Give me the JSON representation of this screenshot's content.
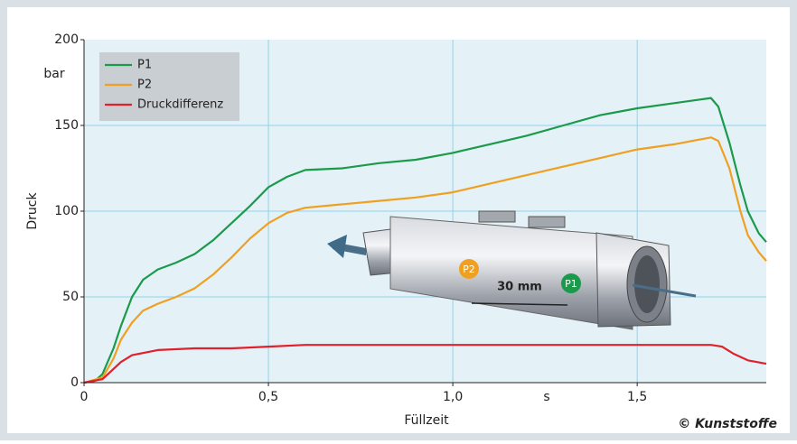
{
  "chart_data": {
    "type": "line",
    "y_label": "Druck",
    "x_label": "Füllzeit",
    "y_unit": "bar",
    "x_unit": "s",
    "credit": "© Kunststoffe",
    "xlim": [
      0,
      1.85
    ],
    "ylim": [
      0,
      200
    ],
    "xticks": [
      0,
      {
        "value": 0.5,
        "label": "0,5"
      },
      {
        "value": 1,
        "label": "1,0"
      },
      {
        "value": 1.5,
        "label": "1,5"
      }
    ],
    "yticks": [
      0,
      50,
      100,
      150,
      200
    ],
    "grid": true,
    "legend": "top-left",
    "series": [
      {
        "name": "P1",
        "color": "#1a9a4a",
        "x": [
          0,
          0.03,
          0.05,
          0.08,
          0.1,
          0.13,
          0.16,
          0.2,
          0.25,
          0.3,
          0.35,
          0.4,
          0.45,
          0.5,
          0.55,
          0.6,
          0.7,
          0.8,
          0.9,
          1.0,
          1.1,
          1.2,
          1.3,
          1.4,
          1.5,
          1.6,
          1.7,
          1.72,
          1.75,
          1.78,
          1.8,
          1.83,
          1.85
        ],
        "values": [
          0,
          1,
          5,
          20,
          33,
          50,
          60,
          66,
          70,
          75,
          83,
          93,
          103,
          114,
          120,
          124,
          125,
          128,
          130,
          134,
          139,
          144,
          150,
          156,
          160,
          163,
          166,
          161,
          140,
          115,
          100,
          87,
          82
        ]
      },
      {
        "name": "P2",
        "color": "#f0a020",
        "x": [
          0,
          0.05,
          0.08,
          0.1,
          0.13,
          0.16,
          0.2,
          0.25,
          0.3,
          0.35,
          0.4,
          0.45,
          0.5,
          0.55,
          0.6,
          0.7,
          0.8,
          0.9,
          1.0,
          1.1,
          1.2,
          1.3,
          1.4,
          1.5,
          1.6,
          1.7,
          1.72,
          1.75,
          1.78,
          1.8,
          1.83,
          1.85
        ],
        "values": [
          0,
          3,
          14,
          25,
          35,
          42,
          46,
          50,
          55,
          63,
          73,
          84,
          93,
          99,
          102,
          104,
          106,
          108,
          111,
          116,
          121,
          126,
          131,
          136,
          139,
          143,
          141,
          125,
          100,
          86,
          76,
          71
        ]
      },
      {
        "name": "Druckdifferenz",
        "color": "#e0202a",
        "x": [
          0,
          0.05,
          0.08,
          0.1,
          0.13,
          0.2,
          0.3,
          0.4,
          0.5,
          0.6,
          0.7,
          0.8,
          1.0,
          1.2,
          1.4,
          1.6,
          1.7,
          1.73,
          1.76,
          1.8,
          1.85
        ],
        "values": [
          0,
          2,
          8,
          12,
          16,
          19,
          20,
          20,
          21,
          22,
          22,
          22,
          22,
          22,
          22,
          22,
          22,
          21,
          17,
          13,
          11
        ]
      }
    ],
    "illustration": {
      "p1": "P1",
      "p2": "P2",
      "distance": "30 mm"
    }
  }
}
